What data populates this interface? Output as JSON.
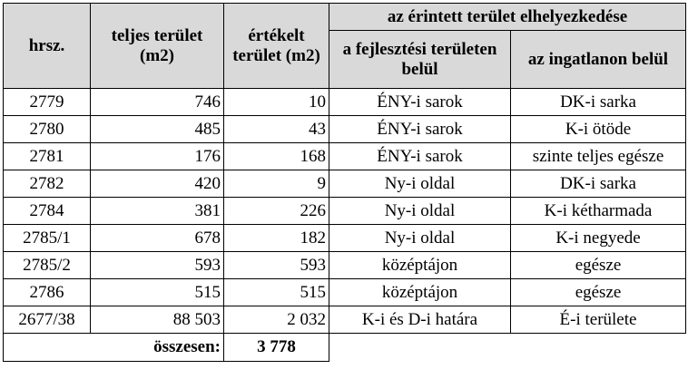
{
  "headers": {
    "hrsz": "hrsz.",
    "teljes": "teljes terület (m2)",
    "ertekelt": "értékelt terület (m2)",
    "elhelyezkedes": "az érintett terület elhelyezkedése",
    "fejlesztesi": "a fejlesztési területen belül",
    "ingatlanon": "az ingatlanon belül"
  },
  "rows": [
    {
      "hrsz": "2779",
      "teljes": "746",
      "ertekelt": "10",
      "fejlesztesi": "ÉNY-i sarok",
      "ingatlanon": "DK-i sarka"
    },
    {
      "hrsz": "2780",
      "teljes": "485",
      "ertekelt": "43",
      "fejlesztesi": "ÉNY-i sarok",
      "ingatlanon": "K-i ötöde"
    },
    {
      "hrsz": "2781",
      "teljes": "176",
      "ertekelt": "168",
      "fejlesztesi": "ÉNY-i sarok",
      "ingatlanon": "szinte teljes egésze"
    },
    {
      "hrsz": "2782",
      "teljes": "420",
      "ertekelt": "9",
      "fejlesztesi": "Ny-i oldal",
      "ingatlanon": "DK-i sarka"
    },
    {
      "hrsz": "2784",
      "teljes": "381",
      "ertekelt": "226",
      "fejlesztesi": "Ny-i oldal",
      "ingatlanon": "K-i kétharmada"
    },
    {
      "hrsz": "2785/1",
      "teljes": "678",
      "ertekelt": "182",
      "fejlesztesi": "Ny-i oldal",
      "ingatlanon": "K-i negyede"
    },
    {
      "hrsz": "2785/2",
      "teljes": "593",
      "ertekelt": "593",
      "fejlesztesi": "középtájon",
      "ingatlanon": "egésze"
    },
    {
      "hrsz": "2786",
      "teljes": "515",
      "ertekelt": "515",
      "fejlesztesi": "középtájon",
      "ingatlanon": "egésze"
    },
    {
      "hrsz": "2677/38",
      "teljes": "88 503",
      "ertekelt": "2 032",
      "fejlesztesi": "K-i és D-i határa",
      "ingatlanon": "É-i területe"
    }
  ],
  "total": {
    "label": "összesen:",
    "value": "3 778"
  }
}
